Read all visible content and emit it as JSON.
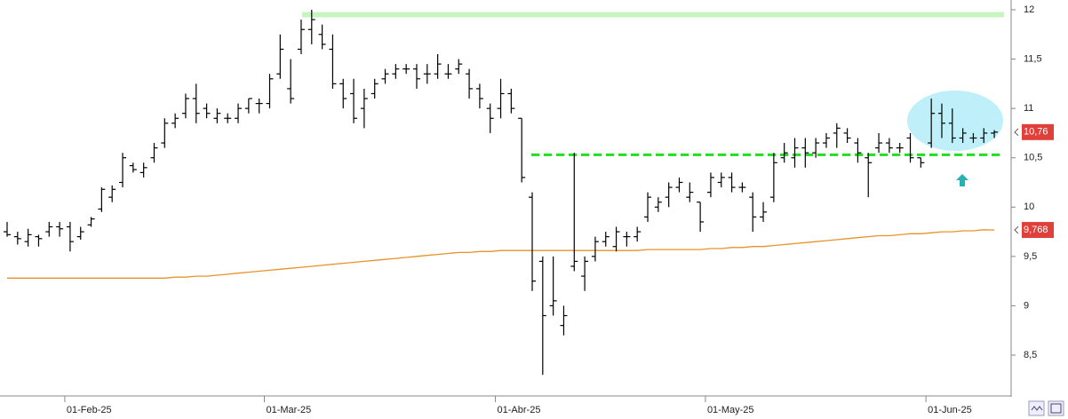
{
  "chart_data": {
    "type": "ohlc",
    "categories": [
      null,
      null,
      null,
      null,
      null,
      null,
      "01-Feb-25",
      null,
      null,
      null,
      null,
      null,
      null,
      null,
      null,
      null,
      null,
      null,
      null,
      null,
      null,
      null,
      null,
      null,
      null,
      "01-Mar-25",
      null,
      null,
      null,
      null,
      null,
      null,
      null,
      null,
      null,
      null,
      null,
      null,
      null,
      null,
      null,
      null,
      null,
      null,
      null,
      null,
      null,
      "01-Abr-25",
      null,
      null,
      null,
      null,
      null,
      null,
      null,
      null,
      null,
      null,
      null,
      null,
      null,
      null,
      null,
      null,
      null,
      null,
      null,
      "01-May-25",
      null,
      null,
      null,
      null,
      null,
      null,
      null,
      null,
      null,
      null,
      null,
      null,
      null,
      null,
      null,
      null,
      null,
      null,
      null,
      null,
      "01-Jun-25",
      null,
      null,
      null,
      null,
      null,
      null
    ],
    "open": [
      9.75,
      9.7,
      9.65,
      9.7,
      9.75,
      9.8,
      9.8,
      9.7,
      9.82,
      9.98,
      10.1,
      10.25,
      10.42,
      10.35,
      10.5,
      10.65,
      10.85,
      10.95,
      11.1,
      11.0,
      10.9,
      10.9,
      10.9,
      11.0,
      11.05,
      11.05,
      11.35,
      11.2,
      11.6,
      11.8,
      11.75,
      11.6,
      11.25,
      11.15,
      11.0,
      11.15,
      11.3,
      11.35,
      11.4,
      11.4,
      11.35,
      11.35,
      11.35,
      11.4,
      11.35,
      11.2,
      11.0,
      11.0,
      11.15,
      10.9,
      10.1,
      9.45,
      9.0,
      8.8,
      9.4,
      9.3,
      9.5,
      9.65,
      9.6,
      9.7,
      9.7,
      9.9,
      10.0,
      10.1,
      10.2,
      10.1,
      10.05,
      10.15,
      10.25,
      10.3,
      10.2,
      10.1,
      9.9,
      10.1,
      10.5,
      10.5,
      10.6,
      10.55,
      10.65,
      10.75,
      10.75,
      10.65,
      10.5,
      10.6,
      10.65,
      10.6,
      10.7,
      10.5,
      10.65,
      10.95,
      10.85,
      10.7,
      10.7,
      10.7,
      10.75
    ],
    "high": [
      9.85,
      9.75,
      9.78,
      9.72,
      9.85,
      9.85,
      9.85,
      9.8,
      9.9,
      10.2,
      10.22,
      10.55,
      10.45,
      10.45,
      10.65,
      10.9,
      10.95,
      11.15,
      11.25,
      11.05,
      11.0,
      10.95,
      11.05,
      11.1,
      11.1,
      11.35,
      11.75,
      11.5,
      11.9,
      12.0,
      11.85,
      11.75,
      11.3,
      11.3,
      11.2,
      11.3,
      11.4,
      11.45,
      11.45,
      11.45,
      11.45,
      11.55,
      11.45,
      11.5,
      11.4,
      11.25,
      11.05,
      11.3,
      11.2,
      10.9,
      10.15,
      9.5,
      9.5,
      9.0,
      10.55,
      9.5,
      9.7,
      9.75,
      9.8,
      9.75,
      9.8,
      10.15,
      10.1,
      10.25,
      10.3,
      10.25,
      10.05,
      10.35,
      10.35,
      10.35,
      10.25,
      10.15,
      10.05,
      10.55,
      10.65,
      10.7,
      10.7,
      10.7,
      10.75,
      10.85,
      10.8,
      10.7,
      10.55,
      10.75,
      10.7,
      10.65,
      10.75,
      10.5,
      11.1,
      11.05,
      11.0,
      10.8,
      10.75,
      10.8,
      10.78
    ],
    "low": [
      9.7,
      9.62,
      9.6,
      9.6,
      9.7,
      9.7,
      9.55,
      9.67,
      9.8,
      9.95,
      10.05,
      10.2,
      10.35,
      10.3,
      10.45,
      10.6,
      10.8,
      10.9,
      10.85,
      10.9,
      10.85,
      10.85,
      10.85,
      10.95,
      10.95,
      11.0,
      11.3,
      11.05,
      11.55,
      11.65,
      11.6,
      11.2,
      11.0,
      10.85,
      10.8,
      11.1,
      11.25,
      11.3,
      11.35,
      11.2,
      11.25,
      11.3,
      11.3,
      11.35,
      11.1,
      11.0,
      10.75,
      10.9,
      10.95,
      10.25,
      9.15,
      8.3,
      8.9,
      8.7,
      9.35,
      9.15,
      9.45,
      9.6,
      9.55,
      9.6,
      9.65,
      9.85,
      9.95,
      10.0,
      10.15,
      10.05,
      9.75,
      10.1,
      10.2,
      10.15,
      10.15,
      9.75,
      9.85,
      10.05,
      10.45,
      10.4,
      10.4,
      10.5,
      10.6,
      10.6,
      10.65,
      10.45,
      10.1,
      10.55,
      10.55,
      10.55,
      10.45,
      10.4,
      10.6,
      10.7,
      10.65,
      10.65,
      10.65,
      10.65,
      10.7
    ],
    "close": [
      9.72,
      9.68,
      9.72,
      9.68,
      9.8,
      9.78,
      9.65,
      9.75,
      9.88,
      10.18,
      10.18,
      10.5,
      10.38,
      10.4,
      10.6,
      10.85,
      10.9,
      11.1,
      10.95,
      10.95,
      10.95,
      10.9,
      11.0,
      11.1,
      11.05,
      11.3,
      11.6,
      11.1,
      11.8,
      11.9,
      11.65,
      11.25,
      11.1,
      10.9,
      11.1,
      11.25,
      11.35,
      11.4,
      11.4,
      11.3,
      11.35,
      11.45,
      11.35,
      11.45,
      11.2,
      11.1,
      10.9,
      11.15,
      11.0,
      10.3,
      9.25,
      8.9,
      9.05,
      8.9,
      9.45,
      9.45,
      9.65,
      9.7,
      9.75,
      9.7,
      9.75,
      10.1,
      10.05,
      10.2,
      10.25,
      10.15,
      9.85,
      10.3,
      10.3,
      10.2,
      10.2,
      9.9,
      9.95,
      10.45,
      10.55,
      10.6,
      10.55,
      10.65,
      10.7,
      10.8,
      10.7,
      10.55,
      10.45,
      10.65,
      10.6,
      10.6,
      10.5,
      10.45,
      10.95,
      10.85,
      10.7,
      10.75,
      10.7,
      10.75,
      10.76
    ],
    "color": "#000000",
    "ma": {
      "color": "#e8932a",
      "values": [
        9.28,
        9.28,
        9.28,
        9.28,
        9.28,
        9.28,
        9.28,
        9.28,
        9.28,
        9.28,
        9.28,
        9.28,
        9.28,
        9.28,
        9.28,
        9.28,
        9.29,
        9.29,
        9.3,
        9.3,
        9.31,
        9.32,
        9.33,
        9.34,
        9.35,
        9.36,
        9.37,
        9.38,
        9.39,
        9.4,
        9.41,
        9.42,
        9.43,
        9.44,
        9.45,
        9.46,
        9.47,
        9.48,
        9.49,
        9.5,
        9.51,
        9.52,
        9.53,
        9.54,
        9.54,
        9.55,
        9.55,
        9.56,
        9.56,
        9.56,
        9.56,
        9.56,
        9.56,
        9.56,
        9.56,
        9.56,
        9.56,
        9.56,
        9.56,
        9.56,
        9.56,
        9.57,
        9.57,
        9.57,
        9.57,
        9.57,
        9.57,
        9.58,
        9.58,
        9.59,
        9.59,
        9.6,
        9.6,
        9.61,
        9.62,
        9.63,
        9.64,
        9.65,
        9.66,
        9.67,
        9.68,
        9.69,
        9.7,
        9.71,
        9.71,
        9.72,
        9.73,
        9.73,
        9.74,
        9.75,
        9.75,
        9.76,
        9.76,
        9.77,
        9.768
      ]
    },
    "hlines": [
      {
        "value": 11.95,
        "color": "#c6f5c0",
        "dashed": false
      },
      {
        "value": 10.53,
        "color": "#22dd22",
        "dashed": true
      }
    ],
    "price_tags": [
      {
        "value": 10.76,
        "label": "10,76",
        "color": "#e0403a"
      },
      {
        "value": 9.768,
        "label": "9,768",
        "color": "#e0403a"
      }
    ],
    "ylim": [
      8.095,
      12.099
    ],
    "yticks": [
      {
        "value": 8.5,
        "label": "8,5"
      },
      9,
      {
        "value": 9.5,
        "label": "9,5"
      },
      10,
      {
        "value": 10.5,
        "label": "10,5"
      },
      11,
      {
        "value": 11.5,
        "label": "11,5"
      },
      12
    ]
  }
}
